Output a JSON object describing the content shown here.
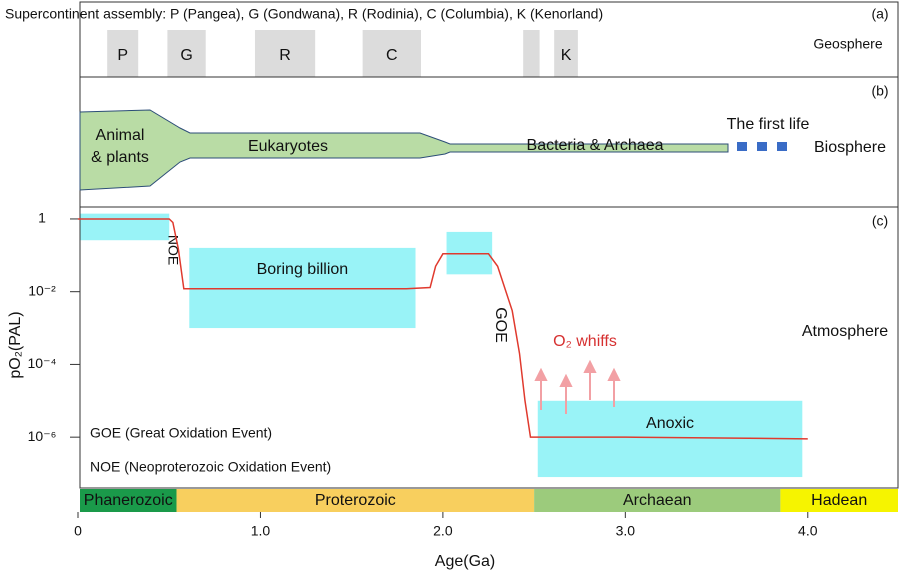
{
  "chart_data": {
    "type": "line",
    "xlabel": "Age(Ga)",
    "ylabel": "pO₂(PAL)",
    "panel_label": "(c)",
    "sphere": "Atmosphere",
    "xlim": [
      0,
      4.5
    ],
    "xticks": [
      0,
      {
        "value": 1,
        "label": "1.0"
      },
      {
        "value": 2,
        "label": "2.0"
      },
      {
        "value": 3,
        "label": "3.0"
      },
      {
        "value": 4,
        "label": "4.0"
      }
    ],
    "ylog": true,
    "ylim": [
      4e-08,
      2
    ],
    "yticks": [
      1,
      {
        "value": 0.01,
        "label": "10⁻²"
      },
      {
        "value": 0.0001,
        "label": "10⁻⁴"
      },
      {
        "value": 1e-06,
        "label": "10⁻⁶"
      }
    ],
    "x": [
      0,
      0.5,
      0.52,
      0.55,
      0.58,
      1.8,
      1.93,
      1.96,
      2.0,
      2.25,
      2.3,
      2.38,
      2.42,
      2.45,
      2.48,
      3.0,
      4.0
    ],
    "series": [
      {
        "color": "#e03a2e",
        "values": [
          1,
          1,
          0.8,
          0.15,
          0.012,
          0.012,
          0.013,
          0.05,
          0.11,
          0.11,
          0.05,
          0.003,
          0.0002,
          1e-05,
          1e-06,
          1e-06,
          9e-07
        ]
      }
    ],
    "bands": [
      {
        "x0": 0.01,
        "x1": 0.5,
        "y0": 0.26,
        "y1": 1.4
      },
      {
        "x0": 0.61,
        "x1": 1.85,
        "y0": 0.001,
        "y1": 0.16,
        "label": "Boring billion"
      },
      {
        "x0": 2.02,
        "x1": 2.27,
        "y0": 0.03,
        "y1": 0.44
      },
      {
        "x0": 2.52,
        "x1": 3.97,
        "y0": 8e-08,
        "y1": 1e-05,
        "label": "Anoxic"
      }
    ],
    "annotations": [
      "NOE",
      "GOE",
      "O₂ whiffs",
      "GOE (Great Oxidation Event)",
      "NOE (Neoproterozoic Oxidation Event)"
    ],
    "eras": [
      {
        "name": "Phanerozoic",
        "start": 0,
        "end": 0.54,
        "color": "#1a9a4a"
      },
      {
        "name": "Proterozoic",
        "start": 0.54,
        "end": 2.5,
        "color": "#f8cf5e"
      },
      {
        "name": "Archaean",
        "start": 2.5,
        "end": 3.85,
        "color": "#9ccb7c"
      },
      {
        "name": "Hadean",
        "start": 3.85,
        "end": 4.5,
        "color": "#f6f400"
      }
    ],
    "geosphere": {
      "title": "Supercontinent assembly: P (Pangea), G (Gondwana), R (Rodinia), C (Columbia), K (Kenorland)",
      "panel_label": "(a)",
      "sphere": "Geosphere",
      "supercontinents": [
        {
          "label": "P",
          "start": 0.16,
          "end": 0.33
        },
        {
          "label": "G",
          "start": 0.49,
          "end": 0.7
        },
        {
          "label": "R",
          "start": 0.97,
          "end": 1.3
        },
        {
          "label": "C",
          "start": 1.56,
          "end": 1.88
        },
        {
          "label": null,
          "start": 2.44,
          "end": 2.53
        },
        {
          "label": "K",
          "start": 2.61,
          "end": 2.74
        }
      ]
    },
    "biosphere": {
      "panel_label": "(b)",
      "sphere": "Biosphere",
      "groups": [
        [
          "Animal",
          "& plants"
        ],
        [
          "Eukaryotes"
        ],
        [
          "Bacteria & Archaea"
        ],
        [
          "The first life"
        ]
      ]
    }
  }
}
